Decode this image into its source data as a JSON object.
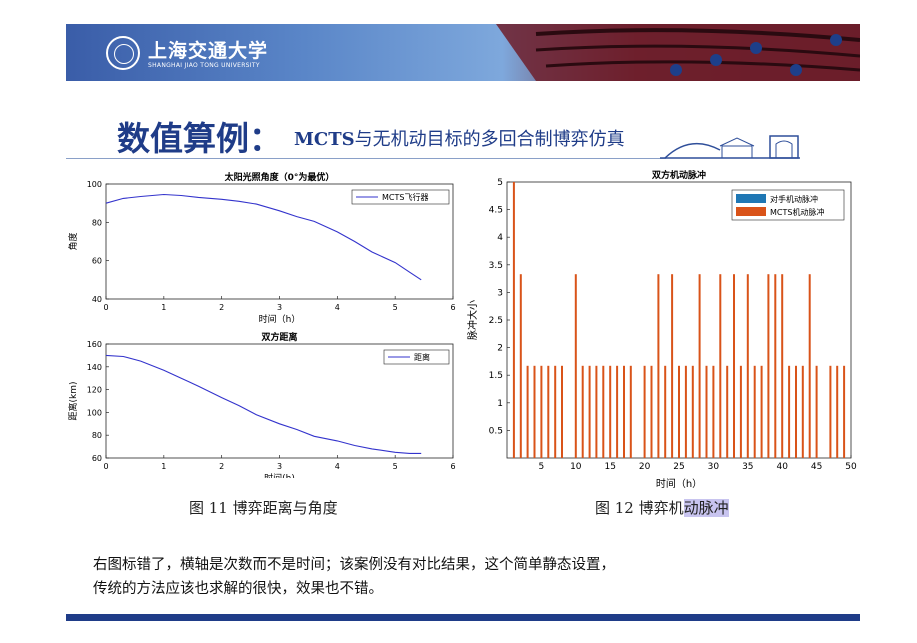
{
  "header": {
    "university_cn": "上海交通大学",
    "university_en": "SHANGHAI JIAO TONG UNIVERSITY"
  },
  "slide": {
    "title": "数值算例：",
    "subtitle_bold": "MCTS",
    "subtitle_rest": "与无机动目标的多回合制博弈仿真"
  },
  "figure11_caption": "图 11  博弈距离与角度",
  "figure12_caption_a": "图 12  博弈机",
  "figure12_caption_b": "动脉冲",
  "note": {
    "line1": "右图标错了，横轴是次数而不是时间；该案例没有对比结果，这个简单静态设置，",
    "line2": "传统的方法应该也求解的很快，效果也不错。"
  },
  "chart_data": [
    {
      "type": "line",
      "title": "太阳光照角度（0°为最优）",
      "xlabel": "时间（h）",
      "ylabel": "角度",
      "xlim": [
        0,
        6
      ],
      "ylim": [
        40,
        100
      ],
      "xticks": [
        0,
        1,
        2,
        3,
        4,
        5,
        6
      ],
      "yticks": [
        40,
        60,
        80,
        100
      ],
      "legend_position": "top-right",
      "series": [
        {
          "name": "MCTS飞行器",
          "color": "#3333cc",
          "x": [
            0,
            0.3,
            0.6,
            1.0,
            1.3,
            1.6,
            2.0,
            2.3,
            2.6,
            3.0,
            3.3,
            3.6,
            4.0,
            4.3,
            4.6,
            5.0,
            5.25,
            5.45
          ],
          "y": [
            90,
            92.5,
            93.5,
            94.5,
            94,
            93,
            92,
            91,
            89.5,
            86,
            83,
            80.5,
            75,
            70,
            64.5,
            59,
            54,
            50
          ]
        }
      ]
    },
    {
      "type": "line",
      "title": "双方距离",
      "xlabel": "时间(h)",
      "ylabel": "距离(km)",
      "xlim": [
        0,
        6
      ],
      "ylim": [
        60,
        160
      ],
      "xticks": [
        0,
        1,
        2,
        3,
        4,
        5,
        6
      ],
      "yticks": [
        60,
        80,
        100,
        120,
        140,
        160
      ],
      "legend_position": "top-right",
      "series": [
        {
          "name": "距离",
          "color": "#3333cc",
          "x": [
            0,
            0.3,
            0.6,
            1.0,
            1.3,
            1.6,
            2.0,
            2.3,
            2.6,
            3.0,
            3.3,
            3.6,
            4.0,
            4.3,
            4.6,
            5.0,
            5.25,
            5.45
          ],
          "y": [
            150,
            149,
            145,
            137,
            130,
            123,
            113,
            106,
            98,
            90,
            85,
            79,
            75,
            71,
            68,
            65,
            64,
            64
          ]
        }
      ]
    },
    {
      "type": "bar",
      "title": "双方机动脉冲",
      "xlabel": "时间（h）",
      "ylabel": "脉冲大小",
      "xlim": [
        0,
        50
      ],
      "ylim": [
        0,
        5
      ],
      "xticks": [
        5,
        10,
        15,
        20,
        25,
        30,
        35,
        40,
        45,
        50
      ],
      "yticks": [
        0.5,
        1,
        1.5,
        2,
        2.5,
        3,
        3.5,
        4,
        4.5,
        5
      ],
      "legend_position": "top-right",
      "series": [
        {
          "name": "对手机动脉冲",
          "color": "#1f77b4",
          "x": [],
          "values": []
        },
        {
          "name": "MCTS机动脉冲",
          "color": "#d95319",
          "x": [
            1,
            2,
            3,
            4,
            5,
            6,
            7,
            8,
            10,
            11,
            12,
            13,
            14,
            15,
            16,
            17,
            18,
            20,
            21,
            22,
            23,
            24,
            25,
            26,
            27,
            28,
            29,
            30,
            31,
            32,
            33,
            34,
            35,
            36,
            37,
            38,
            39,
            40,
            41,
            42,
            43,
            44,
            45,
            47,
            48,
            49
          ],
          "values": [
            5,
            3.33,
            1.67,
            1.67,
            1.67,
            1.67,
            1.67,
            1.67,
            3.33,
            1.67,
            1.67,
            1.67,
            1.67,
            1.67,
            1.67,
            1.67,
            1.67,
            1.67,
            1.67,
            3.33,
            1.67,
            3.33,
            1.67,
            1.67,
            1.67,
            3.33,
            1.67,
            1.67,
            3.33,
            1.67,
            3.33,
            1.67,
            3.33,
            1.67,
            1.67,
            3.33,
            3.33,
            3.33,
            1.67,
            1.67,
            1.67,
            3.33,
            1.67,
            1.67,
            1.67,
            1.67
          ]
        }
      ]
    }
  ]
}
